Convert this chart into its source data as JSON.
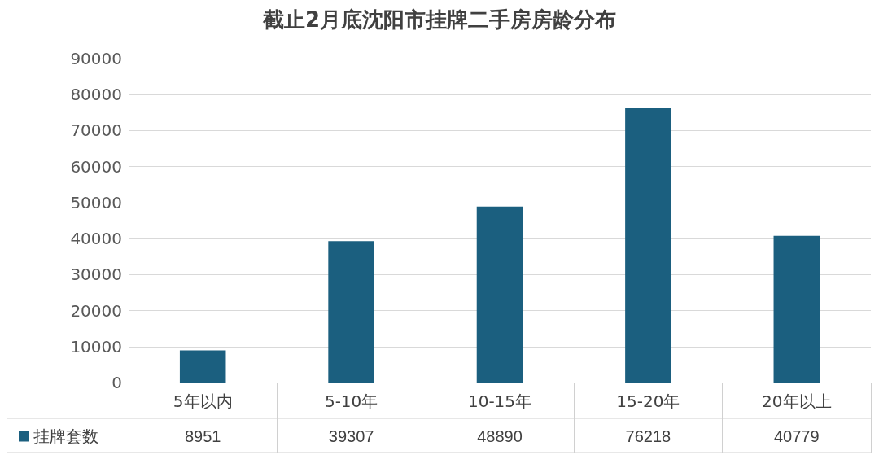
{
  "chart_data": {
    "type": "bar",
    "title": "截止2月底沈阳市挂牌二手房房龄分布",
    "categories": [
      "5年以内",
      "5-10年",
      "10-15年",
      "15-20年",
      "20年以上"
    ],
    "series": [
      {
        "name": "挂牌套数",
        "color": "#1b5f7f",
        "values": [
          8951,
          39307,
          48890,
          76218,
          40779
        ]
      }
    ],
    "ylim": [
      0,
      90000
    ],
    "yticks": [
      0,
      10000,
      20000,
      30000,
      40000,
      50000,
      60000,
      70000,
      80000,
      90000
    ],
    "grid": "y",
    "legend": "bottom left",
    "data_labels": true
  }
}
